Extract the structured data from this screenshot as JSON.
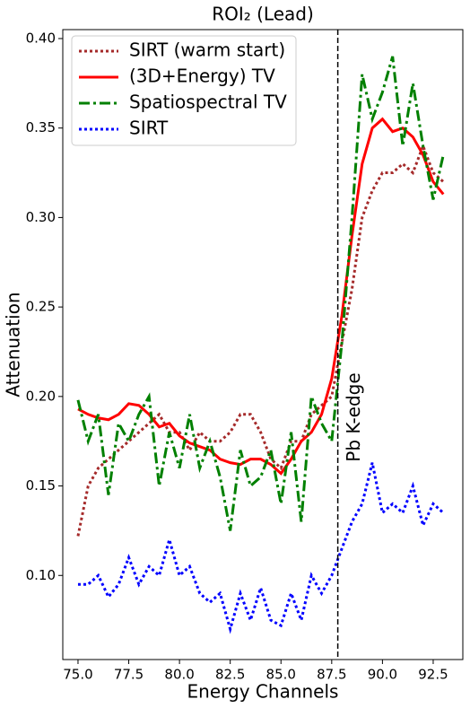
{
  "chart_data": {
    "type": "line",
    "title": "ROI₂ (Lead)",
    "x_label": "Energy Channels",
    "y_label": "Attenuation",
    "annotation": "Pb K-edge",
    "vline": 87.8,
    "legend": "upper left",
    "grid": false,
    "x": [
      75.0,
      75.5,
      76.0,
      76.5,
      77.0,
      77.5,
      78.0,
      78.5,
      79.0,
      79.5,
      80.0,
      80.5,
      81.0,
      81.5,
      82.0,
      82.5,
      83.0,
      83.5,
      84.0,
      84.5,
      85.0,
      85.5,
      86.0,
      86.5,
      87.0,
      87.5,
      88.0,
      88.5,
      89.0,
      89.5,
      90.0,
      90.5,
      91.0,
      91.5,
      92.0,
      92.5,
      93.0
    ],
    "series": [
      {
        "name": "SIRT (warm start)",
        "color": "#a52a2a",
        "style": "dotted",
        "values": [
          0.122,
          0.15,
          0.16,
          0.165,
          0.17,
          0.175,
          0.18,
          0.185,
          0.19,
          0.18,
          0.18,
          0.17,
          0.18,
          0.175,
          0.175,
          0.18,
          0.19,
          0.19,
          0.18,
          0.165,
          0.16,
          0.175,
          0.175,
          0.19,
          0.195,
          0.2,
          0.23,
          0.26,
          0.3,
          0.315,
          0.325,
          0.325,
          0.33,
          0.325,
          0.34,
          0.325,
          0.32
        ]
      },
      {
        "name": "(3D+Energy) TV",
        "color": "#ff0000",
        "style": "solid",
        "values": [
          0.193,
          0.19,
          0.188,
          0.187,
          0.19,
          0.196,
          0.195,
          0.19,
          0.183,
          0.185,
          0.178,
          0.174,
          0.172,
          0.17,
          0.165,
          0.163,
          0.162,
          0.165,
          0.165,
          0.162,
          0.157,
          0.165,
          0.175,
          0.18,
          0.19,
          0.21,
          0.245,
          0.29,
          0.33,
          0.35,
          0.355,
          0.348,
          0.35,
          0.345,
          0.335,
          0.32,
          0.313
        ]
      },
      {
        "name": "Spatiospectral TV",
        "color": "#008000",
        "style": "dashdot",
        "values": [
          0.198,
          0.175,
          0.19,
          0.145,
          0.185,
          0.175,
          0.19,
          0.2,
          0.15,
          0.18,
          0.16,
          0.19,
          0.16,
          0.175,
          0.155,
          0.125,
          0.17,
          0.15,
          0.155,
          0.17,
          0.14,
          0.18,
          0.13,
          0.2,
          0.185,
          0.175,
          0.23,
          0.3,
          0.38,
          0.355,
          0.37,
          0.39,
          0.34,
          0.375,
          0.34,
          0.31,
          0.335
        ]
      },
      {
        "name": "SIRT",
        "color": "#0000ff",
        "style": "dotted",
        "values": [
          0.095,
          0.095,
          0.1,
          0.088,
          0.095,
          0.11,
          0.095,
          0.105,
          0.1,
          0.12,
          0.1,
          0.105,
          0.09,
          0.085,
          0.09,
          0.07,
          0.09,
          0.075,
          0.093,
          0.075,
          0.072,
          0.09,
          0.075,
          0.1,
          0.09,
          0.1,
          0.115,
          0.13,
          0.14,
          0.163,
          0.135,
          0.14,
          0.135,
          0.15,
          0.128,
          0.14,
          0.135
        ]
      }
    ],
    "xlim": [
      74.25,
      93.96
    ],
    "ylim": [
      0.053,
      0.405
    ],
    "xticks": [
      {
        "value": 75,
        "label": "75.0"
      },
      77.5,
      {
        "value": 80,
        "label": "80.0"
      },
      82.5,
      {
        "value": 85,
        "label": "85.0"
      },
      87.5,
      {
        "value": 90,
        "label": "90.0"
      },
      92.5
    ],
    "yticks": [
      {
        "value": 0.1,
        "label": "0.10"
      },
      0.15,
      {
        "value": 0.2,
        "label": "0.20"
      },
      0.25,
      {
        "value": 0.3,
        "label": "0.30"
      },
      0.35,
      {
        "value": 0.4,
        "label": "0.40"
      }
    ]
  }
}
